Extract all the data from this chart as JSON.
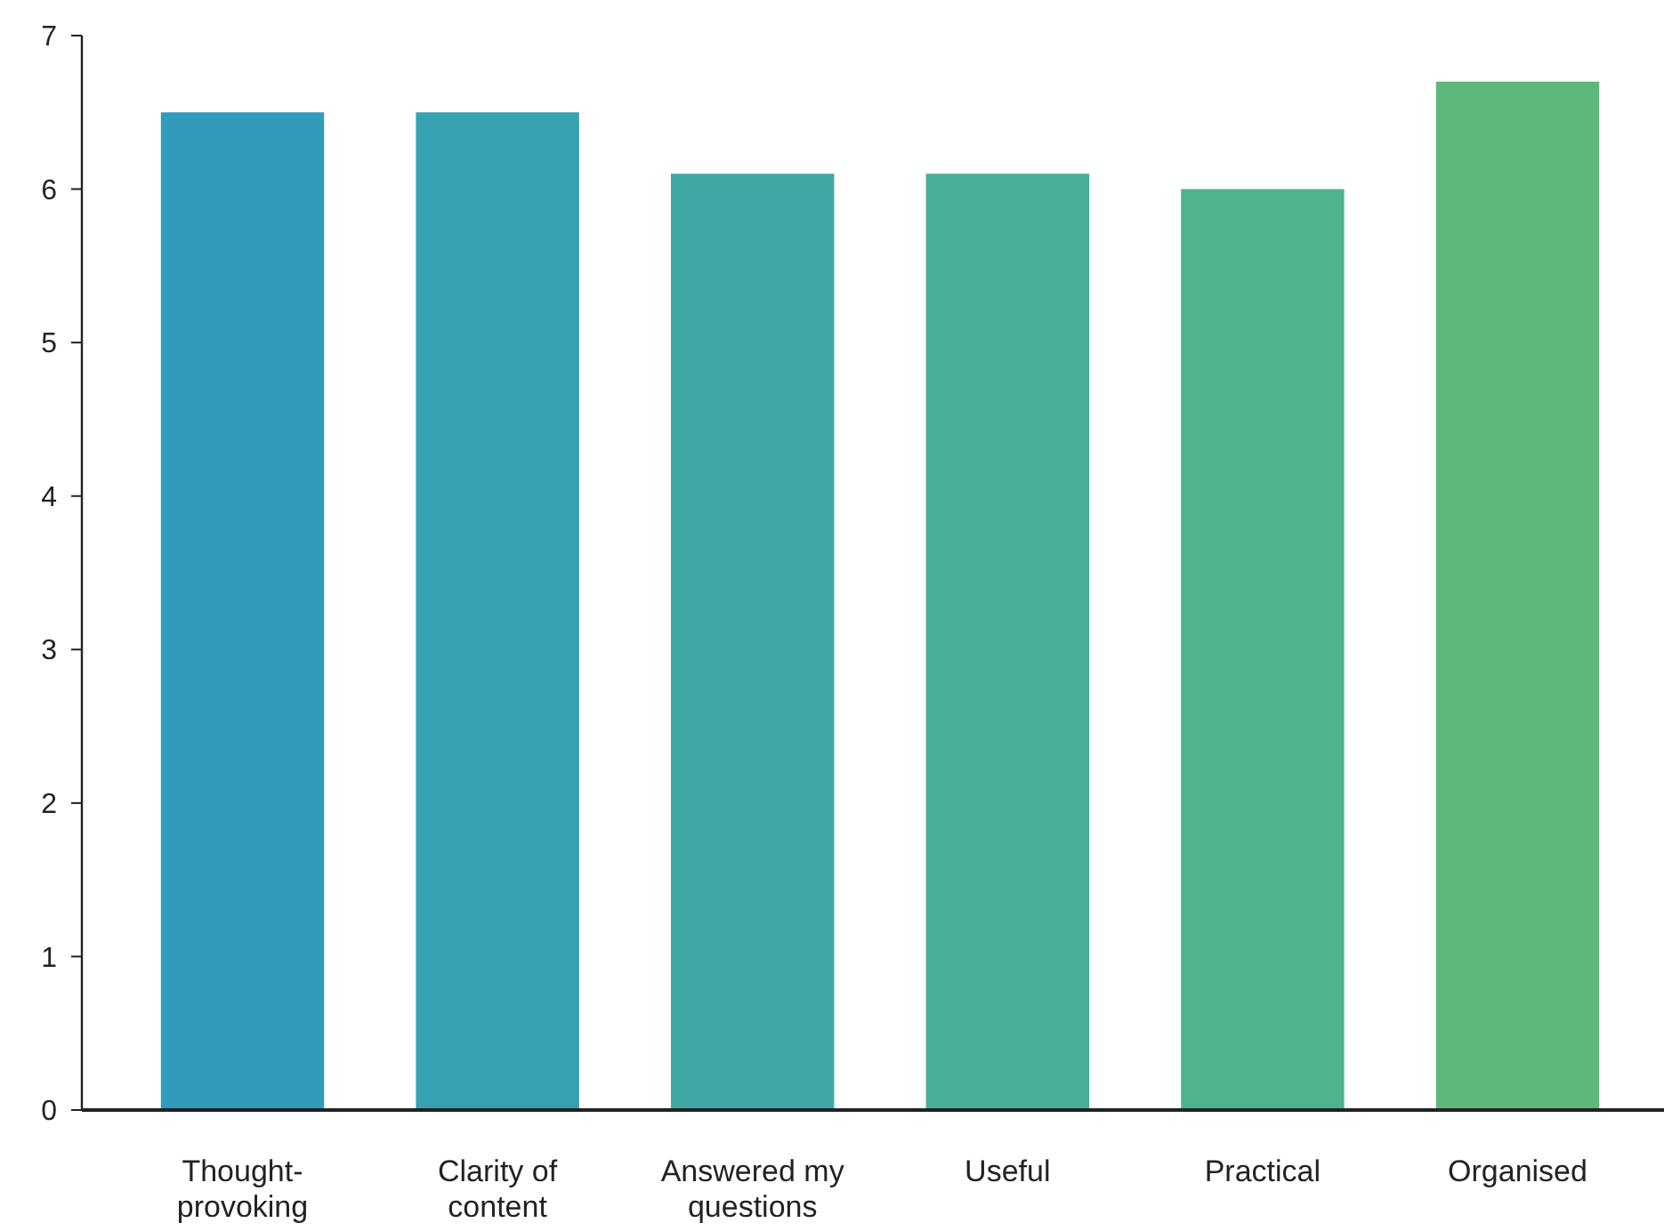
{
  "chart_data": {
    "type": "bar",
    "categories": [
      "Thought-provoking",
      "Clarity of content",
      "Answered my questions",
      "Useful",
      "Practical",
      "Organised"
    ],
    "values": [
      6.5,
      6.5,
      6.1,
      6.1,
      6.0,
      6.7
    ],
    "colors": [
      "#309bba",
      "#36a1b0",
      "#3fa8a4",
      "#48ad99",
      "#4fb38e",
      "#5db87c"
    ],
    "ylim": [
      0,
      7
    ],
    "yticks": [
      0,
      1,
      2,
      3,
      4,
      5,
      6,
      7
    ],
    "grid": false
  }
}
